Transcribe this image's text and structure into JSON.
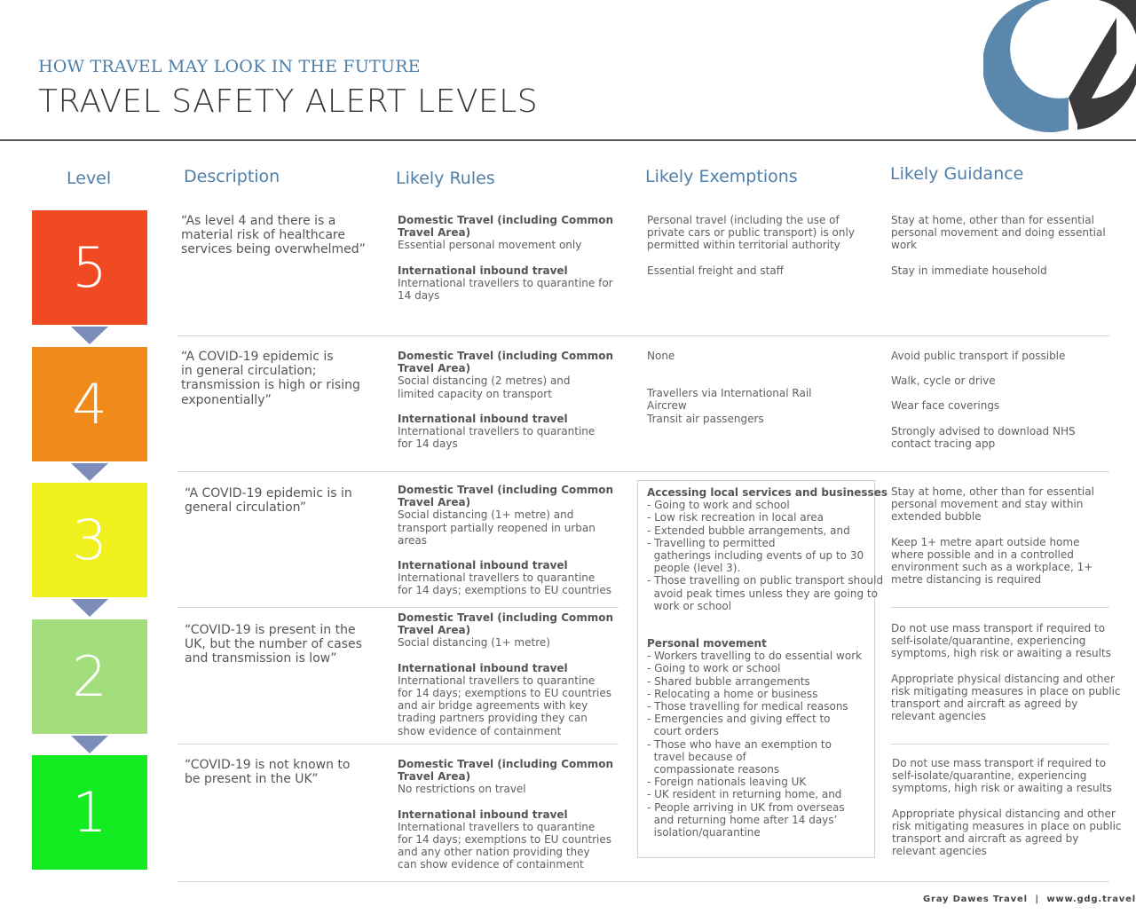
{
  "header": {
    "subtitle": "HOW TRAVEL MAY LOOK IN THE FUTURE",
    "title": "TRAVEL SAFETY ALERT LEVELS"
  },
  "columns": {
    "level": "Level",
    "description": "Description",
    "rules": "Likely Rules",
    "exemptions": "Likely Exemptions",
    "guidance": "Likely Guidance"
  },
  "levels": [
    {
      "number": "5",
      "color": "#f04a23"
    },
    {
      "number": "4",
      "color": "#ef8a1b"
    },
    {
      "number": "3",
      "color": "#f0f01e"
    },
    {
      "number": "2",
      "color": "#a2df7c"
    },
    {
      "number": "1",
      "color": "#14ec22"
    }
  ],
  "arrow_color": "#7d8db9",
  "descriptions": {
    "l5": [
      "“As level 4 and there is a",
      "material risk of healthcare",
      "services being overwhelmed”"
    ],
    "l4": [
      "“A COVID-19 epidemic is",
      "in general circulation;",
      "transmission is high or rising",
      "exponentially”"
    ],
    "l3": [
      "“A COVID-19 epidemic is in",
      "general circulation”"
    ],
    "l2": [
      "“COVID-19 is present in the",
      "UK, but the number of cases",
      "and transmission is low”"
    ],
    "l1": [
      "“COVID-19 is not known to",
      "be present in the UK”"
    ]
  },
  "rules": {
    "domestic_heading": [
      "Domestic Travel (including Common",
      "Travel Area)"
    ],
    "international_heading": "International inbound travel",
    "l5": {
      "domestic": [
        "Essential personal movement only"
      ],
      "international": [
        "International travellers to quarantine for",
        "14 days"
      ]
    },
    "l4": {
      "domestic": [
        "Social distancing (2 metres) and",
        "limited capacity on transport"
      ],
      "international": [
        "International travellers to quarantine",
        "for 14 days"
      ]
    },
    "l3": {
      "domestic": [
        "Social distancing (1+ metre) and",
        "transport partially reopened in urban",
        "areas"
      ],
      "international": [
        "International travellers to quarantine",
        "for 14 days; exemptions to EU countries"
      ]
    },
    "l2": {
      "domestic": [
        "Social distancing (1+ metre)"
      ],
      "international": [
        "International travellers to quarantine",
        "for 14 days; exemptions to EU countries",
        "and air bridge agreements with key",
        "trading partners providing they can",
        "show evidence of containment"
      ]
    },
    "l1": {
      "domestic": [
        "No restrictions on travel"
      ],
      "international": [
        "International travellers to quarantine",
        "for 14 days; exemptions to EU countries",
        "and any other nation providing they",
        "can show evidence of containment"
      ]
    }
  },
  "exemptions": {
    "l5": {
      "p1": [
        "Personal travel (including the use of",
        "private cars or public transport) is only",
        "permitted within territorial authority"
      ],
      "p2": [
        "Essential freight and staff"
      ]
    },
    "l4": {
      "p1": [
        "None"
      ],
      "p2": [
        "Travellers via International Rail",
        "Aircrew",
        "Transit air passengers"
      ]
    },
    "box": {
      "heading1": "Accessing local services and businesses",
      "list1": [
        "- Going to work and school",
        "- Low risk recreation in local area",
        "- Extended bubble arrangements, and",
        "- Travelling to permitted",
        "  gatherings including events of up to 30",
        "  people (level 3).",
        "- Those travelling on public transport should",
        "  avoid peak times unless they are going to",
        "  work or school"
      ],
      "heading2": "Personal movement",
      "list2": [
        "- Workers travelling to do essential work",
        "- Going to work or school",
        "- Shared bubble arrangements",
        "- Relocating a home or business",
        "- Those travelling for medical reasons",
        "- Emergencies and giving effect to",
        "  court orders",
        "- Those who have an exemption to",
        "  travel because of",
        "  compassionate reasons",
        "- Foreign nationals leaving UK",
        "- UK resident in returning home, and",
        "- People arriving in UK from overseas",
        "  and returning home after 14 days’",
        "  isolation/quarantine"
      ]
    }
  },
  "guidance": {
    "l5": {
      "p1": [
        "Stay at home, other than for essential",
        "personal movement and doing essential",
        "work"
      ],
      "p2": [
        "Stay in immediate household"
      ]
    },
    "l4": {
      "p1": [
        "Avoid public transport if possible"
      ],
      "p2": [
        "Walk, cycle or drive"
      ],
      "p3": [
        "Wear face coverings"
      ],
      "p4": [
        "Strongly advised to download NHS",
        "contact tracing app"
      ]
    },
    "l3": {
      "p1": [
        "Stay at home, other than for essential",
        "personal movement and stay within",
        "extended bubble"
      ],
      "p2": [
        "Keep 1+ metre apart outside home",
        "where possible and in a controlled",
        "environment such as a workplace, 1+",
        "metre distancing is required"
      ]
    },
    "l2": {
      "p1": [
        "Do not use mass transport if required to",
        "self-isolate/quarantine, experiencing",
        "symptoms, high risk or awaiting a results"
      ],
      "p2": [
        "Appropriate physical distancing and other",
        "risk mitigating measures in place on public",
        "transport and aircraft as agreed by",
        "relevant agencies"
      ]
    },
    "l1": {
      "p1": [
        "Do not use mass transport if required to",
        "self-isolate/quarantine, experiencing",
        "symptoms, high risk or awaiting a results"
      ],
      "p2": [
        "Appropriate physical distancing and other",
        "risk mitigating measures in place on public",
        "transport and aircraft as agreed by",
        "relevant agencies"
      ]
    }
  },
  "footer": "Gray Dawes Travel  |  www.gdg.travel",
  "logo": {
    "icon": "gdg-logo-icon",
    "blue": "#5b87ad",
    "dark": "#3a3a3c"
  }
}
